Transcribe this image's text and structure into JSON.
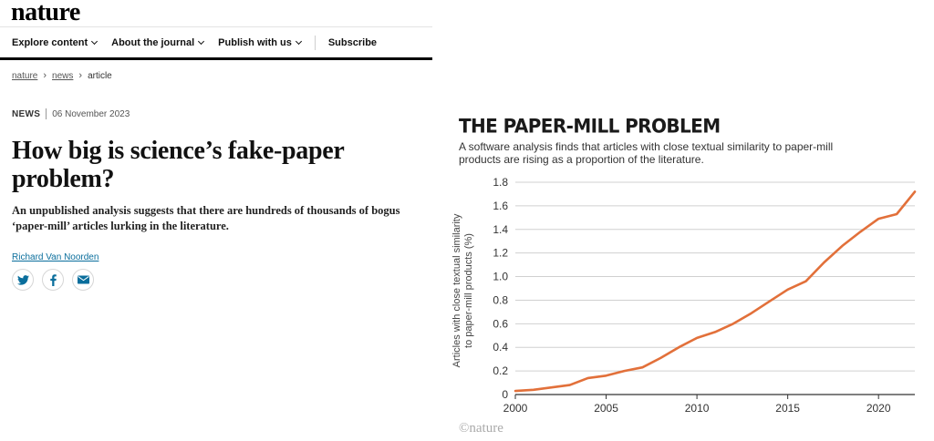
{
  "site": {
    "logo": "nature"
  },
  "nav": {
    "items": [
      {
        "label": "Explore content"
      },
      {
        "label": "About the journal"
      },
      {
        "label": "Publish with us"
      }
    ],
    "subscribe": "Subscribe"
  },
  "breadcrumb": {
    "items": [
      "nature",
      "news"
    ],
    "current": "article"
  },
  "article": {
    "type": "NEWS",
    "date": "06 November 2023",
    "title": "How big is science’s fake-paper problem?",
    "standfirst": "An unpublished analysis suggests that there are hundreds of thousands of bogus ‘paper-mill’ articles lurking in the literature.",
    "author": "Richard Van Noorden",
    "share_icons": [
      "twitter-icon",
      "facebook-icon",
      "email-icon"
    ]
  },
  "figure": {
    "credit": "©nature",
    "line_color": "#e2703a"
  },
  "chart_data": {
    "type": "line",
    "title": "THE PAPER-MILL PROBLEM",
    "subtitle": "A software analysis finds that articles with close textual similarity to paper-mill products are rising as a proportion of the literature.",
    "xlabel": "",
    "ylabel": "Articles with close textual similarity to paper-mill products (%)",
    "xlim": [
      2000,
      2022
    ],
    "ylim": [
      0,
      1.8
    ],
    "xticks": [
      "2000",
      "2005",
      "2010",
      "2015",
      "2020"
    ],
    "yticks": [
      "0",
      "0.2",
      "0.4",
      "0.6",
      "0.8",
      "1.0",
      "1.2",
      "1.4",
      "1.6",
      "1.8"
    ],
    "grid": true,
    "x": [
      2000,
      2001,
      2002,
      2003,
      2004,
      2005,
      2006,
      2007,
      2008,
      2009,
      2010,
      2011,
      2012,
      2013,
      2014,
      2015,
      2016,
      2017,
      2018,
      2019,
      2020,
      2021,
      2022
    ],
    "y": [
      0.03,
      0.04,
      0.06,
      0.08,
      0.14,
      0.16,
      0.2,
      0.23,
      0.31,
      0.4,
      0.48,
      0.53,
      0.6,
      0.69,
      0.79,
      0.89,
      0.96,
      1.12,
      1.26,
      1.38,
      1.49,
      1.53,
      1.72
    ]
  }
}
